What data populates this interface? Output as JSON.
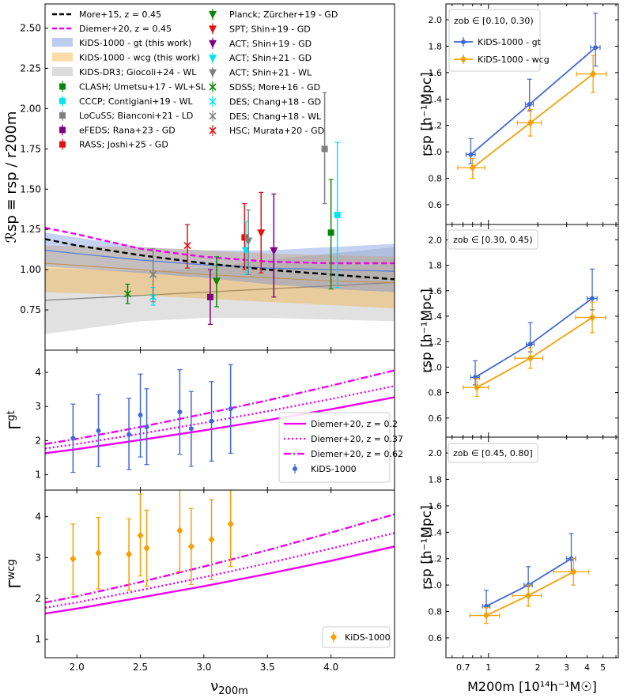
{
  "chart_data": [
    {
      "id": "ratio",
      "type": "scatter",
      "ylabel": "ℛsp ≡ rsp / r200m",
      "xlim": [
        1.75,
        4.5
      ],
      "ylim": [
        0.5,
        2.65
      ],
      "yticks": [
        "0.75",
        "1.00",
        "1.25",
        "1.50",
        "1.75",
        "2.00",
        "2.25",
        "2.50"
      ],
      "bands": [
        {
          "name": "KiDS-1000 - gt (this work)",
          "color": "#5b7fd8",
          "x": [
            1.75,
            2.5,
            3.0,
            3.5,
            4.0,
            4.5
          ],
          "center": [
            1.12,
            1.06,
            1.03,
            1.01,
            1.0,
            0.99
          ],
          "low": [
            1.02,
            0.98,
            0.95,
            0.91,
            0.88,
            0.86
          ],
          "high": [
            1.23,
            1.14,
            1.12,
            1.12,
            1.14,
            1.16
          ]
        },
        {
          "name": "KiDS-1000 - wcg (this work)",
          "color": "#f5a623",
          "x": [
            1.75,
            2.5,
            3.0,
            3.5,
            4.0,
            4.5
          ],
          "center": [
            1.04,
            1.0,
            0.97,
            0.95,
            0.93,
            0.92
          ],
          "low": [
            0.86,
            0.84,
            0.82,
            0.8,
            0.78,
            0.76
          ],
          "high": [
            1.15,
            1.14,
            1.12,
            1.1,
            1.09,
            1.08
          ]
        },
        {
          "name": "KiDS-DR3; Giocoli+24 - WL",
          "color": "#a8a8a8",
          "x": [
            1.75,
            2.5,
            3.0,
            3.5,
            4.0,
            4.5
          ],
          "center": [
            0.81,
            0.84,
            0.86,
            0.88,
            0.9,
            0.92
          ],
          "low": [
            0.6,
            0.68,
            0.7,
            0.7,
            0.69,
            0.68
          ],
          "high": [
            1.01,
            0.99,
            1.01,
            1.06,
            1.1,
            1.14
          ]
        }
      ],
      "lines": [
        {
          "name": "More+15, z = 0.45",
          "color": "#000000",
          "dash": "7,4",
          "x": [
            1.75,
            2.0,
            2.5,
            3.0,
            3.5,
            4.0,
            4.5
          ],
          "y": [
            1.19,
            1.15,
            1.09,
            1.04,
            1.0,
            0.97,
            0.94
          ]
        },
        {
          "name": "Diemer+20, z = 0.45",
          "color": "#ee00ee",
          "dash": "7,4",
          "x": [
            1.75,
            2.0,
            2.5,
            3.0,
            3.5,
            4.0,
            4.5
          ],
          "y": [
            1.26,
            1.22,
            1.13,
            1.08,
            1.05,
            1.04,
            1.04
          ]
        }
      ],
      "points": [
        {
          "label": "CLASH; Umetsu+17 - WL+SL",
          "color": "#0a870a",
          "marker": "square",
          "x": 4.0,
          "y": 1.23,
          "ylo": 0.88,
          "yhi": 1.56
        },
        {
          "label": "CCCP; Contigiani+19 - WL",
          "color": "#00e5ee",
          "marker": "square",
          "x": 4.05,
          "y": 1.34,
          "ylo": 0.89,
          "yhi": 1.79
        },
        {
          "label": "LoCuSS; Bianconi+21 - LD",
          "color": "#808080",
          "marker": "square",
          "x": 3.95,
          "y": 1.75,
          "ylo": 1.41,
          "yhi": 2.1
        },
        {
          "label": "eFEDS; Rana+23 - GD",
          "color": "#800080",
          "marker": "square",
          "x": 3.05,
          "y": 0.83,
          "ylo": 0.66,
          "yhi": 1.0
        },
        {
          "label": "RASS; Joshi+25 - GD",
          "color": "#e51010",
          "marker": "square",
          "x": 3.32,
          "y": 1.2,
          "ylo": 1.0,
          "yhi": 1.41
        },
        {
          "label": "Planck; Zürcher+19 - GD",
          "color": "#0a870a",
          "marker": "tri",
          "x": 3.1,
          "y": 0.93,
          "ylo": 0.77,
          "yhi": 1.08
        },
        {
          "label": "SPT; Shin+19 - GD",
          "color": "#e51010",
          "marker": "tri",
          "x": 3.45,
          "y": 1.23,
          "ylo": 0.98,
          "yhi": 1.48
        },
        {
          "label": "ACT; Shin+19 - GD",
          "color": "#800080",
          "marker": "tri",
          "x": 3.55,
          "y": 1.12,
          "ylo": 0.83,
          "yhi": 1.47
        },
        {
          "label": "ACT; Shin+21 - GD",
          "color": "#00e5ee",
          "marker": "tri",
          "x": 3.33,
          "y": 1.12,
          "ylo": 0.97,
          "yhi": 1.3
        },
        {
          "label": "ACT; Shin+21 - WL",
          "color": "#808080",
          "marker": "tri",
          "x": 3.35,
          "y": 1.18,
          "ylo": 0.97,
          "yhi": 1.37
        },
        {
          "label": "SDSS; More+16 - GD",
          "color": "#0a870a",
          "marker": "x",
          "x": 2.4,
          "y": 0.85,
          "ylo": 0.79,
          "yhi": 0.91
        },
        {
          "label": "DES; Chang+18 - GD",
          "color": "#00e5ee",
          "marker": "x",
          "x": 2.6,
          "y": 0.83,
          "ylo": 0.78,
          "yhi": 0.89
        },
        {
          "label": "DES; Chang+18 - WL",
          "color": "#808080",
          "marker": "x",
          "x": 2.6,
          "y": 0.97,
          "ylo": 0.8,
          "yhi": 1.13
        },
        {
          "label": "HSC; Murata+20 - GD",
          "color": "#e51010",
          "marker": "x",
          "x": 2.87,
          "y": 1.15,
          "ylo": 1.01,
          "yhi": 1.28
        }
      ],
      "legend_col1": [
        {
          "kind": "line",
          "ref": "More+15",
          "label": "More+15, z = 0.45"
        },
        {
          "kind": "line",
          "ref": "Diemer+20",
          "label": "Diemer+20, z = 0.45"
        },
        {
          "kind": "band",
          "label": "KiDS-1000 - gt (this work)"
        },
        {
          "kind": "band",
          "label": "KiDS-1000 - wcg (this work)"
        },
        {
          "kind": "band",
          "label": "KiDS-DR3; Giocoli+24 - WL"
        }
      ]
    },
    {
      "id": "gamma_gt",
      "type": "scatter",
      "ylabel": "Γgt",
      "xlim": [
        1.75,
        4.5
      ],
      "ylim": [
        0.55,
        4.65
      ],
      "yticks": [
        "1",
        "2",
        "3",
        "4"
      ],
      "lines": [
        {
          "name": "Diemer+20, z = 0.2",
          "color": "#ee00ee",
          "dash": "",
          "x": [
            1.75,
            2.0,
            2.5,
            3.0,
            3.5,
            4.0,
            4.5
          ],
          "y": [
            1.63,
            1.75,
            2.02,
            2.3,
            2.6,
            2.92,
            3.27
          ]
        },
        {
          "name": "Diemer+20, z = 0.37",
          "color": "#ee00ee",
          "dash": "2,3",
          "x": [
            1.75,
            2.0,
            2.5,
            3.0,
            3.5,
            4.0,
            4.5
          ],
          "y": [
            1.77,
            1.9,
            2.2,
            2.52,
            2.86,
            3.22,
            3.6
          ]
        },
        {
          "name": "Diemer+20, z = 0.62",
          "color": "#ee00ee",
          "dash": "9,3,2,3",
          "x": [
            1.75,
            2.0,
            2.5,
            3.0,
            3.5,
            4.0,
            4.5
          ],
          "y": [
            1.9,
            2.05,
            2.4,
            2.78,
            3.18,
            3.61,
            4.06
          ]
        }
      ],
      "points": [
        {
          "label": "KiDS-1000",
          "color": "#4169d4",
          "marker": "circle",
          "x": 1.97,
          "y": 2.07,
          "ylo": 1.07,
          "yhi": 3.07
        },
        {
          "label": "",
          "color": "#4169d4",
          "marker": "circle",
          "x": 2.17,
          "y": 2.29,
          "ylo": 1.24,
          "yhi": 3.35
        },
        {
          "label": "",
          "color": "#4169d4",
          "marker": "circle",
          "x": 2.41,
          "y": 2.18,
          "ylo": 1.15,
          "yhi": 3.24
        },
        {
          "label": "",
          "color": "#4169d4",
          "marker": "circle",
          "x": 2.5,
          "y": 2.75,
          "ylo": 1.52,
          "yhi": 3.95
        },
        {
          "label": "",
          "color": "#4169d4",
          "marker": "circle",
          "x": 2.55,
          "y": 2.4,
          "ylo": 1.3,
          "yhi": 3.52
        },
        {
          "label": "",
          "color": "#4169d4",
          "marker": "circle",
          "x": 2.81,
          "y": 2.84,
          "ylo": 1.6,
          "yhi": 4.08
        },
        {
          "label": "",
          "color": "#4169d4",
          "marker": "circle",
          "x": 2.9,
          "y": 2.35,
          "ylo": 1.25,
          "yhi": 3.44
        },
        {
          "label": "",
          "color": "#4169d4",
          "marker": "circle",
          "x": 3.06,
          "y": 2.57,
          "ylo": 1.4,
          "yhi": 3.73
        },
        {
          "label": "",
          "color": "#4169d4",
          "marker": "circle",
          "x": 3.21,
          "y": 2.93,
          "ylo": 1.63,
          "yhi": 4.23
        }
      ],
      "legend": [
        "Diemer+20, z = 0.2",
        "Diemer+20, z = 0.37",
        "Diemer+20, z = 0.62",
        "KiDS-1000"
      ]
    },
    {
      "id": "gamma_wcg",
      "type": "scatter",
      "ylabel": "Γwcg",
      "xlabel": "ν200m",
      "xlim": [
        1.75,
        4.5
      ],
      "ylim": [
        0.55,
        4.65
      ],
      "xticks": [
        "2.0",
        "2.5",
        "3.0",
        "3.5",
        "4.0"
      ],
      "yticks": [
        "1",
        "2",
        "3",
        "4"
      ],
      "points": [
        {
          "label": "KiDS-1000",
          "color": "#f5a00a",
          "marker": "diamond",
          "x": 1.97,
          "y": 2.97,
          "ylo": 2.1,
          "yhi": 3.82
        },
        {
          "label": "",
          "color": "#f5a00a",
          "marker": "diamond",
          "x": 2.17,
          "y": 3.11,
          "ylo": 2.23,
          "yhi": 3.98
        },
        {
          "label": "",
          "color": "#f5a00a",
          "marker": "diamond",
          "x": 2.41,
          "y": 3.08,
          "ylo": 2.2,
          "yhi": 3.95
        },
        {
          "label": "",
          "color": "#f5a00a",
          "marker": "diamond",
          "x": 2.5,
          "y": 3.54,
          "ylo": 2.55,
          "yhi": 4.55
        },
        {
          "label": "",
          "color": "#f5a00a",
          "marker": "diamond",
          "x": 2.55,
          "y": 3.23,
          "ylo": 2.3,
          "yhi": 4.16
        },
        {
          "label": "",
          "color": "#f5a00a",
          "marker": "diamond",
          "x": 2.81,
          "y": 3.66,
          "ylo": 2.66,
          "yhi": 4.67
        },
        {
          "label": "",
          "color": "#f5a00a",
          "marker": "diamond",
          "x": 2.9,
          "y": 3.27,
          "ylo": 2.34,
          "yhi": 4.2
        },
        {
          "label": "",
          "color": "#f5a00a",
          "marker": "diamond",
          "x": 3.06,
          "y": 3.44,
          "ylo": 2.46,
          "yhi": 4.42
        },
        {
          "label": "",
          "color": "#f5a00a",
          "marker": "diamond",
          "x": 3.21,
          "y": 3.82,
          "ylo": 2.78,
          "yhi": 4.87
        }
      ],
      "legend": [
        "KiDS-1000"
      ]
    },
    {
      "id": "rsp_bin1",
      "type": "line",
      "ylabel": "rsp [h⁻¹Mpc]",
      "xscale": "log",
      "xlim": [
        0.55,
        6.2
      ],
      "ylim": [
        0.45,
        2.12
      ],
      "yticks": [
        "0.6",
        "0.8",
        "1.0",
        "1.2",
        "1.4",
        "1.6",
        "1.8",
        "2.0"
      ],
      "bin_label": "zob ∈ [0.10, 0.30)",
      "series": [
        {
          "name": "KiDS-1000 - gt",
          "color": "#4169d4",
          "marker": "circle",
          "x": [
            0.78,
            1.78,
            4.5
          ],
          "y": [
            0.98,
            1.36,
            1.79
          ],
          "yerr_lo": [
            0.07,
            0.05,
            0.14
          ],
          "yerr_hi": [
            0.12,
            0.19,
            0.26
          ],
          "xerr_lo": [
            0.05,
            0.1,
            0.3
          ],
          "xerr_hi": [
            0.05,
            0.1,
            0.3
          ]
        },
        {
          "name": "KiDS-1000 - wcg",
          "color": "#f5a00a",
          "marker": "diamond",
          "x": [
            0.8,
            1.8,
            4.35
          ],
          "y": [
            0.88,
            1.22,
            1.59
          ],
          "yerr_lo": [
            0.08,
            0.1,
            0.14
          ],
          "yerr_hi": [
            0.07,
            0.1,
            0.14
          ],
          "xerr_lo": [
            0.15,
            0.3,
            0.9
          ],
          "xerr_hi": [
            0.15,
            0.3,
            0.9
          ]
        }
      ]
    },
    {
      "id": "rsp_bin2",
      "type": "line",
      "ylabel": "rsp [h⁻¹Mpc]",
      "xscale": "log",
      "xlim": [
        0.55,
        6.2
      ],
      "ylim": [
        0.45,
        2.12
      ],
      "yticks": [
        "0.6",
        "0.8",
        "1.0",
        "1.2",
        "1.4",
        "1.6",
        "1.8",
        "2.0"
      ],
      "bin_label": "zob ∈ [0.30, 0.45)",
      "series": [
        {
          "name": "KiDS-1000 - gt",
          "color": "#4169d4",
          "marker": "circle",
          "x": [
            0.83,
            1.8,
            4.3
          ],
          "y": [
            0.92,
            1.18,
            1.54
          ],
          "yerr_lo": [
            0.06,
            0.06,
            0.09
          ],
          "yerr_hi": [
            0.13,
            0.17,
            0.23
          ],
          "xerr_lo": [
            0.05,
            0.1,
            0.3
          ],
          "xerr_hi": [
            0.05,
            0.1,
            0.3
          ]
        },
        {
          "name": "KiDS-1000 - wcg",
          "color": "#f5a00a",
          "marker": "diamond",
          "x": [
            0.85,
            1.8,
            4.3
          ],
          "y": [
            0.84,
            1.07,
            1.39
          ],
          "yerr_lo": [
            0.07,
            0.08,
            0.12
          ],
          "yerr_hi": [
            0.07,
            0.08,
            0.12
          ],
          "xerr_lo": [
            0.15,
            0.35,
            0.9
          ],
          "xerr_hi": [
            0.15,
            0.35,
            0.9
          ]
        }
      ]
    },
    {
      "id": "rsp_bin3",
      "type": "line",
      "ylabel": "rsp [h⁻¹Mpc]",
      "xlabel": "M200m [10¹⁴h⁻¹M☉]",
      "xscale": "log",
      "xlim": [
        0.55,
        6.2
      ],
      "ylim": [
        0.45,
        2.12
      ],
      "xticks": [
        "0.7",
        "1",
        "2",
        "3",
        "4",
        "5"
      ],
      "yticks": [
        "0.6",
        "0.8",
        "1.0",
        "1.2",
        "1.4",
        "1.6",
        "1.8",
        "2.0"
      ],
      "bin_label": "zob ∈ [0.45, 0.80]",
      "series": [
        {
          "name": "KiDS-1000 - gt",
          "color": "#4169d4",
          "marker": "circle",
          "x": [
            0.97,
            1.75,
            3.2
          ],
          "y": [
            0.84,
            1.0,
            1.2
          ],
          "yerr_lo": [
            0.06,
            0.08,
            0.1
          ],
          "yerr_hi": [
            0.12,
            0.14,
            0.19
          ],
          "xerr_lo": [
            0.05,
            0.1,
            0.2
          ],
          "xerr_hi": [
            0.05,
            0.1,
            0.2
          ]
        },
        {
          "name": "KiDS-1000 - wcg",
          "color": "#f5a00a",
          "marker": "diamond",
          "x": [
            0.97,
            1.75,
            3.3
          ],
          "y": [
            0.77,
            0.92,
            1.1
          ],
          "yerr_lo": [
            0.06,
            0.08,
            0.1
          ],
          "yerr_hi": [
            0.06,
            0.08,
            0.1
          ],
          "xerr_lo": [
            0.2,
            0.35,
            0.8
          ],
          "xerr_hi": [
            0.2,
            0.35,
            0.8
          ]
        }
      ]
    }
  ]
}
